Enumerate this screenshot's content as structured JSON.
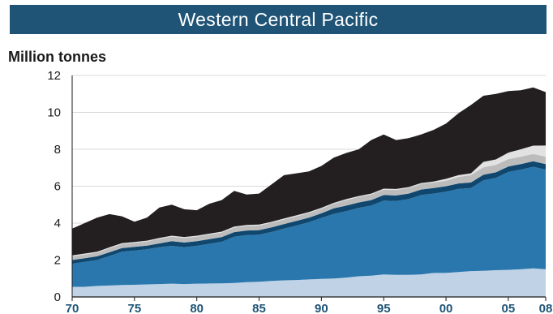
{
  "header": {
    "title": "Western Central Pacific"
  },
  "chart_data": {
    "type": "area",
    "stacked": true,
    "title": "Western Central Pacific",
    "ylabel": "Million tonnes",
    "xlabel": "",
    "ylim": [
      0,
      12
    ],
    "yticks": [
      0,
      2,
      4,
      6,
      8,
      10,
      12
    ],
    "xlim": [
      1970,
      2008
    ],
    "xtick_labels": [
      {
        "year": 1970,
        "label": "70"
      },
      {
        "year": 1975,
        "label": "75"
      },
      {
        "year": 1980,
        "label": "80"
      },
      {
        "year": 1985,
        "label": "85"
      },
      {
        "year": 1990,
        "label": "90"
      },
      {
        "year": 1995,
        "label": "95"
      },
      {
        "year": 2000,
        "label": "00"
      },
      {
        "year": 2005,
        "label": "05"
      },
      {
        "year": 2008,
        "label": "08"
      }
    ],
    "grid": true,
    "x": [
      1970,
      1971,
      1972,
      1973,
      1974,
      1975,
      1976,
      1977,
      1978,
      1979,
      1980,
      1981,
      1982,
      1983,
      1984,
      1985,
      1986,
      1987,
      1988,
      1989,
      1990,
      1991,
      1992,
      1993,
      1994,
      1995,
      1996,
      1997,
      1998,
      1999,
      2000,
      2001,
      2002,
      2003,
      2004,
      2005,
      2006,
      2007,
      2008
    ],
    "series": [
      {
        "color": "#bfd2e6",
        "values": [
          0.55,
          0.55,
          0.6,
          0.62,
          0.65,
          0.66,
          0.68,
          0.7,
          0.72,
          0.7,
          0.72,
          0.73,
          0.74,
          0.76,
          0.8,
          0.82,
          0.87,
          0.9,
          0.92,
          0.95,
          0.98,
          1.0,
          1.05,
          1.12,
          1.15,
          1.22,
          1.2,
          1.2,
          1.22,
          1.3,
          1.3,
          1.35,
          1.4,
          1.42,
          1.45,
          1.47,
          1.5,
          1.55,
          1.5
        ]
      },
      {
        "color": "#2a77ad",
        "values": [
          1.25,
          1.35,
          1.4,
          1.6,
          1.8,
          1.85,
          1.9,
          2.0,
          2.05,
          2.0,
          2.05,
          2.15,
          2.25,
          2.5,
          2.55,
          2.55,
          2.65,
          2.8,
          2.95,
          3.1,
          3.3,
          3.5,
          3.6,
          3.7,
          3.8,
          4.0,
          4.0,
          4.1,
          4.3,
          4.3,
          4.4,
          4.5,
          4.5,
          4.9,
          5.0,
          5.3,
          5.4,
          5.5,
          5.4
        ]
      },
      {
        "color": "#10476e",
        "values": [
          0.2,
          0.2,
          0.2,
          0.2,
          0.2,
          0.2,
          0.2,
          0.2,
          0.25,
          0.25,
          0.25,
          0.25,
          0.25,
          0.25,
          0.25,
          0.25,
          0.25,
          0.25,
          0.25,
          0.25,
          0.25,
          0.3,
          0.3,
          0.3,
          0.3,
          0.3,
          0.3,
          0.3,
          0.3,
          0.3,
          0.3,
          0.3,
          0.3,
          0.3,
          0.3,
          0.3,
          0.3,
          0.3,
          0.3
        ]
      },
      {
        "color": "#bcbcbc",
        "values": [
          0.2,
          0.2,
          0.2,
          0.22,
          0.22,
          0.22,
          0.22,
          0.25,
          0.25,
          0.25,
          0.25,
          0.25,
          0.25,
          0.25,
          0.25,
          0.25,
          0.25,
          0.25,
          0.25,
          0.25,
          0.25,
          0.25,
          0.3,
          0.3,
          0.3,
          0.3,
          0.3,
          0.3,
          0.3,
          0.3,
          0.3,
          0.35,
          0.4,
          0.4,
          0.4,
          0.4,
          0.4,
          0.4,
          0.4
        ]
      },
      {
        "color": "#e2e2e2",
        "values": [
          0.05,
          0.05,
          0.05,
          0.05,
          0.05,
          0.05,
          0.05,
          0.05,
          0.05,
          0.05,
          0.05,
          0.05,
          0.05,
          0.05,
          0.05,
          0.05,
          0.05,
          0.05,
          0.05,
          0.05,
          0.05,
          0.05,
          0.05,
          0.05,
          0.05,
          0.05,
          0.05,
          0.05,
          0.05,
          0.05,
          0.1,
          0.1,
          0.1,
          0.3,
          0.3,
          0.35,
          0.4,
          0.45,
          0.6
        ]
      },
      {
        "color": "#231f20",
        "values": [
          1.45,
          1.65,
          1.85,
          1.8,
          1.45,
          1.1,
          1.25,
          1.65,
          1.68,
          1.5,
          1.38,
          1.62,
          1.71,
          1.94,
          1.65,
          1.68,
          2.03,
          2.35,
          2.28,
          2.2,
          2.27,
          2.45,
          2.5,
          2.53,
          2.9,
          2.93,
          2.65,
          2.65,
          2.63,
          2.8,
          3.0,
          3.35,
          3.7,
          3.58,
          3.55,
          3.33,
          3.2,
          3.15,
          2.9
        ]
      }
    ]
  }
}
